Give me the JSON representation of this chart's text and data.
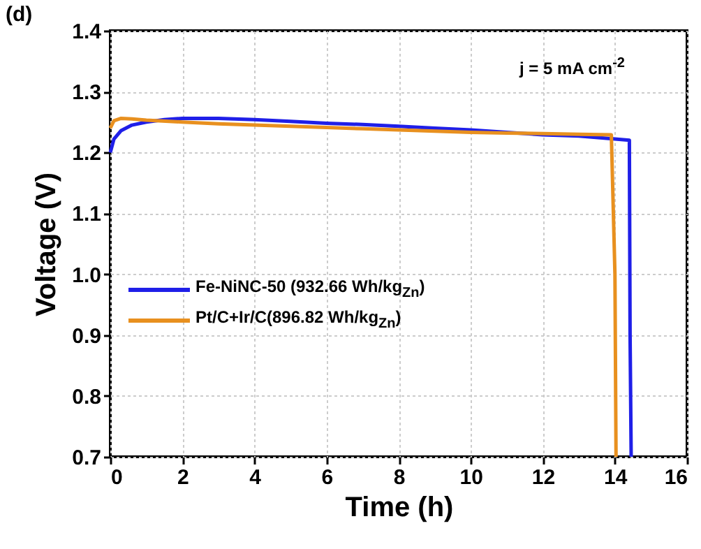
{
  "chart_data": {
    "type": "line",
    "xlabel": "Time (h)",
    "ylabel": "Voltage (V)",
    "annotations": [
      "(d)",
      "j = 5 mA cm$^{-2}$"
    ],
    "xlim": [
      0,
      16
    ],
    "xticks": [
      0,
      2,
      4,
      6,
      8,
      10,
      12,
      14,
      16
    ],
    "ylim": [
      0.7,
      1.4
    ],
    "yticks": [
      {
        "value": 0.7,
        "label": "0.7"
      },
      {
        "value": 0.8,
        "label": "0.8"
      },
      {
        "value": 0.9,
        "label": "0.9"
      },
      {
        "value": 1,
        "label": "1.0"
      },
      {
        "value": 1.1,
        "label": "1.1"
      },
      {
        "value": 1.2,
        "label": "1.2"
      },
      {
        "value": 1.3,
        "label": "1.3"
      },
      {
        "value": 1.4,
        "label": "1.4"
      }
    ],
    "grid": true,
    "legend": "bottom left",
    "line_style": "solid",
    "series": [
      {
        "name": "Fe-NiNC-50 (932.66 Wh/kg$_{Zn}$)",
        "color": "#1f1fe8",
        "x": [
          0,
          0.1,
          0.3,
          0.6,
          1,
          1.5,
          2,
          3,
          4,
          5,
          6,
          7,
          8,
          9,
          10,
          11,
          12,
          13,
          14,
          14.4,
          14.42,
          14.45
        ],
        "values": [
          1.2,
          1.222,
          1.236,
          1.245,
          1.25,
          1.254,
          1.256,
          1.256,
          1.254,
          1.251,
          1.248,
          1.246,
          1.243,
          1.24,
          1.237,
          1.233,
          1.229,
          1.227,
          1.222,
          1.22,
          0.9,
          0.7
        ]
      },
      {
        "name": "Pt/C+Ir/C(896.82 Wh/kg$_{Zn}$)",
        "color": "#e8901f",
        "x": [
          0,
          0.1,
          0.3,
          0.6,
          1,
          2,
          3,
          4,
          5,
          6,
          7,
          8,
          9,
          10,
          11,
          12,
          13,
          13.9,
          14.0,
          14.03
        ],
        "values": [
          1.24,
          1.252,
          1.256,
          1.255,
          1.253,
          1.25,
          1.247,
          1.245,
          1.243,
          1.241,
          1.239,
          1.237,
          1.235,
          1.233,
          1.232,
          1.231,
          1.23,
          1.229,
          1.0,
          0.7
        ]
      }
    ]
  }
}
